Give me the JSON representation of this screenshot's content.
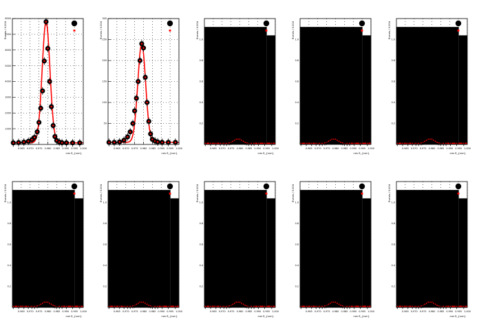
{
  "colors": {
    "data_marker": "#000000",
    "fit": "#ff0000",
    "frame": "#000000",
    "grid": "#000000",
    "fill": "#000000",
    "background": "#ffffff"
  },
  "chart_data": [
    {
      "type": "scatter",
      "title": "",
      "xlabel": "cos θ_{sun}",
      "ylabel": "Events / 0.004",
      "xlim": [
        0.96,
        1.0
      ],
      "ylim": [
        0,
        8000
      ],
      "grid": true,
      "legend_placement": "top-right",
      "filled": false,
      "xticks": [
        0.965,
        0.97,
        0.975,
        0.98,
        0.985,
        0.99,
        0.995,
        1.0
      ],
      "yticks": [
        1000,
        2000,
        3000,
        4000,
        5000,
        6000,
        7000,
        8000
      ],
      "x": [
        0.9605,
        0.9635,
        0.9665,
        0.969,
        0.971,
        0.9725,
        0.974,
        0.975,
        0.976,
        0.977,
        0.978,
        0.979,
        0.98,
        0.981,
        0.982,
        0.983,
        0.984,
        0.985,
        0.9865,
        0.988,
        0.9905,
        0.994,
        0.998
      ],
      "y": [
        100,
        120,
        150,
        200,
        300,
        450,
        800,
        1400,
        2300,
        3400,
        5300,
        7800,
        6100,
        4000,
        2400,
        1200,
        500,
        250,
        150,
        110,
        100,
        100,
        100
      ]
    },
    {
      "type": "scatter",
      "title": "",
      "xlabel": "cos θ_{sun}",
      "ylabel": "Events / 0.004",
      "xlim": [
        0.96,
        1.0
      ],
      "ylim": [
        0,
        300
      ],
      "grid": true,
      "legend_placement": "top-right",
      "filled": false,
      "xticks": [
        0.965,
        0.97,
        0.975,
        0.98,
        0.985,
        0.99,
        0.995,
        1.0
      ],
      "yticks": [
        50,
        100,
        150,
        200,
        250,
        300
      ],
      "x": [
        0.9605,
        0.9635,
        0.9665,
        0.969,
        0.971,
        0.9725,
        0.974,
        0.975,
        0.976,
        0.977,
        0.978,
        0.979,
        0.98,
        0.981,
        0.982,
        0.983,
        0.984,
        0.985,
        0.9865,
        0.988,
        0.9905,
        0.994,
        0.998
      ],
      "y": [
        5,
        5,
        6,
        10,
        18,
        30,
        50,
        80,
        110,
        150,
        200,
        240,
        230,
        160,
        100,
        55,
        25,
        12,
        8,
        6,
        5,
        5,
        5
      ]
    },
    {
      "type": "scatter",
      "title": "",
      "xlabel": "cos θ_{sun}",
      "ylabel": "Events / 0.004",
      "xlim": [
        0.96,
        1.0
      ],
      "ylim": [
        0,
        1.2
      ],
      "grid": true,
      "legend_placement": "top-right",
      "filled": true,
      "xticks": [
        0.965,
        0.97,
        0.975,
        0.98,
        0.985,
        0.99,
        0.995,
        1.0
      ],
      "yticks": [
        0.2,
        0.4,
        0.6,
        0.8,
        1.0
      ],
      "x": [
        0.9605,
        0.9635,
        0.9665,
        0.969,
        0.971,
        0.9725,
        0.974,
        0.975,
        0.976,
        0.977,
        0.978,
        0.979,
        0.98,
        0.981,
        0.982,
        0.983,
        0.984,
        0.985,
        0.9865,
        0.988,
        0.9905,
        0.994,
        0.998
      ],
      "y": [
        0.01,
        0.01,
        0.01,
        0.01,
        0.01,
        0.01,
        0.015,
        0.02,
        0.03,
        0.04,
        0.05,
        0.05,
        0.05,
        0.04,
        0.03,
        0.02,
        0.015,
        0.01,
        0.01,
        0.01,
        0.01,
        0.01,
        0.01
      ]
    },
    {
      "type": "scatter",
      "title": "",
      "xlabel": "cos θ_{sun}",
      "ylabel": "Events / 0.004",
      "xlim": [
        0.96,
        1.0
      ],
      "ylim": [
        0,
        1.2
      ],
      "grid": true,
      "legend_placement": "top-right",
      "filled": true,
      "xticks": [
        0.965,
        0.97,
        0.975,
        0.98,
        0.985,
        0.99,
        0.995,
        1.0
      ],
      "yticks": [
        0.2,
        0.4,
        0.6,
        0.8,
        1.0
      ],
      "x": [
        0.9605,
        0.9635,
        0.9665,
        0.969,
        0.971,
        0.9725,
        0.974,
        0.975,
        0.976,
        0.977,
        0.978,
        0.979,
        0.98,
        0.981,
        0.982,
        0.983,
        0.984,
        0.985,
        0.9865,
        0.988,
        0.9905,
        0.994,
        0.998
      ],
      "y": [
        0.01,
        0.01,
        0.01,
        0.01,
        0.01,
        0.01,
        0.015,
        0.02,
        0.03,
        0.04,
        0.05,
        0.05,
        0.05,
        0.04,
        0.03,
        0.02,
        0.015,
        0.01,
        0.01,
        0.01,
        0.01,
        0.01,
        0.01
      ]
    },
    {
      "type": "scatter",
      "title": "",
      "xlabel": "cos θ_{sun}",
      "ylabel": "Events / 0.004",
      "xlim": [
        0.96,
        1.0
      ],
      "ylim": [
        0,
        1.2
      ],
      "grid": true,
      "legend_placement": "top-right",
      "filled": true,
      "xticks": [
        0.965,
        0.97,
        0.975,
        0.98,
        0.985,
        0.99,
        0.995,
        1.0
      ],
      "yticks": [
        0.2,
        0.4,
        0.6,
        0.8,
        1.0
      ],
      "x": [
        0.9605,
        0.9635,
        0.9665,
        0.969,
        0.971,
        0.9725,
        0.974,
        0.975,
        0.976,
        0.977,
        0.978,
        0.979,
        0.98,
        0.981,
        0.982,
        0.983,
        0.984,
        0.985,
        0.9865,
        0.988,
        0.9905,
        0.994,
        0.998
      ],
      "y": [
        0.01,
        0.01,
        0.01,
        0.01,
        0.01,
        0.01,
        0.015,
        0.02,
        0.03,
        0.04,
        0.05,
        0.05,
        0.05,
        0.04,
        0.03,
        0.02,
        0.015,
        0.01,
        0.01,
        0.01,
        0.01,
        0.01,
        0.01
      ]
    },
    {
      "type": "scatter",
      "title": "",
      "xlabel": "cos θ_{sun}",
      "ylabel": "Events / 0.004",
      "xlim": [
        0.96,
        1.0
      ],
      "ylim": [
        0,
        1.2
      ],
      "grid": true,
      "legend_placement": "top-right",
      "filled": true,
      "xticks": [
        0.965,
        0.97,
        0.975,
        0.98,
        0.985,
        0.99,
        0.995,
        1.0
      ],
      "yticks": [
        0.2,
        0.4,
        0.6,
        0.8,
        1.0
      ],
      "x": [
        0.9605,
        0.9635,
        0.9665,
        0.969,
        0.971,
        0.9725,
        0.974,
        0.975,
        0.976,
        0.977,
        0.978,
        0.979,
        0.98,
        0.981,
        0.982,
        0.983,
        0.984,
        0.985,
        0.9865,
        0.988,
        0.9905,
        0.994,
        0.998
      ],
      "y": [
        0.01,
        0.01,
        0.01,
        0.01,
        0.01,
        0.01,
        0.015,
        0.02,
        0.03,
        0.04,
        0.05,
        0.05,
        0.05,
        0.04,
        0.03,
        0.02,
        0.015,
        0.01,
        0.01,
        0.01,
        0.01,
        0.01,
        0.01
      ]
    },
    {
      "type": "scatter",
      "title": "",
      "xlabel": "cos θ_{sun}",
      "ylabel": "Events / 0.004",
      "xlim": [
        0.96,
        1.0
      ],
      "ylim": [
        0,
        1.2
      ],
      "grid": true,
      "legend_placement": "top-right",
      "filled": true,
      "xticks": [
        0.965,
        0.97,
        0.975,
        0.98,
        0.985,
        0.99,
        0.995,
        1.0
      ],
      "yticks": [
        0.2,
        0.4,
        0.6,
        0.8,
        1.0
      ],
      "x": [
        0.9605,
        0.9635,
        0.9665,
        0.969,
        0.971,
        0.9725,
        0.974,
        0.975,
        0.976,
        0.977,
        0.978,
        0.979,
        0.98,
        0.981,
        0.982,
        0.983,
        0.984,
        0.985,
        0.9865,
        0.988,
        0.9905,
        0.994,
        0.998
      ],
      "y": [
        0.01,
        0.01,
        0.01,
        0.01,
        0.01,
        0.01,
        0.015,
        0.02,
        0.03,
        0.04,
        0.05,
        0.05,
        0.05,
        0.04,
        0.03,
        0.02,
        0.015,
        0.01,
        0.01,
        0.01,
        0.01,
        0.01,
        0.01
      ]
    },
    {
      "type": "scatter",
      "title": "",
      "xlabel": "cos θ_{sun}",
      "ylabel": "Events / 0.004",
      "xlim": [
        0.96,
        1.0
      ],
      "ylim": [
        0,
        1.2
      ],
      "grid": true,
      "legend_placement": "top-right",
      "filled": true,
      "xticks": [
        0.965,
        0.97,
        0.975,
        0.98,
        0.985,
        0.99,
        0.995,
        1.0
      ],
      "yticks": [
        0.2,
        0.4,
        0.6,
        0.8,
        1.0
      ],
      "x": [
        0.9605,
        0.9635,
        0.9665,
        0.969,
        0.971,
        0.9725,
        0.974,
        0.975,
        0.976,
        0.977,
        0.978,
        0.979,
        0.98,
        0.981,
        0.982,
        0.983,
        0.984,
        0.985,
        0.9865,
        0.988,
        0.9905,
        0.994,
        0.998
      ],
      "y": [
        0.01,
        0.01,
        0.01,
        0.01,
        0.01,
        0.01,
        0.015,
        0.02,
        0.03,
        0.04,
        0.05,
        0.05,
        0.05,
        0.04,
        0.03,
        0.02,
        0.015,
        0.01,
        0.01,
        0.01,
        0.01,
        0.01,
        0.01
      ]
    },
    {
      "type": "scatter",
      "title": "",
      "xlabel": "cos θ_{sun}",
      "ylabel": "Events / 0.004",
      "xlim": [
        0.96,
        1.0
      ],
      "ylim": [
        0,
        1.2
      ],
      "grid": true,
      "legend_placement": "top-right",
      "filled": true,
      "xticks": [
        0.965,
        0.97,
        0.975,
        0.98,
        0.985,
        0.99,
        0.995,
        1.0
      ],
      "yticks": [
        0.2,
        0.4,
        0.6,
        0.8,
        1.0
      ],
      "x": [
        0.9605,
        0.9635,
        0.9665,
        0.969,
        0.971,
        0.9725,
        0.974,
        0.975,
        0.976,
        0.977,
        0.978,
        0.979,
        0.98,
        0.981,
        0.982,
        0.983,
        0.984,
        0.985,
        0.9865,
        0.988,
        0.9905,
        0.994,
        0.998
      ],
      "y": [
        0.01,
        0.01,
        0.01,
        0.01,
        0.01,
        0.01,
        0.015,
        0.02,
        0.03,
        0.04,
        0.05,
        0.05,
        0.05,
        0.04,
        0.03,
        0.02,
        0.015,
        0.01,
        0.01,
        0.01,
        0.01,
        0.01,
        0.01
      ]
    },
    {
      "type": "scatter",
      "title": "",
      "xlabel": "cos θ_{sun}",
      "ylabel": "Events / 0.004",
      "xlim": [
        0.96,
        1.0
      ],
      "ylim": [
        0,
        1.2
      ],
      "grid": true,
      "legend_placement": "top-right",
      "filled": true,
      "xticks": [
        0.965,
        0.97,
        0.975,
        0.98,
        0.985,
        0.99,
        0.995,
        1.0
      ],
      "yticks": [
        0.2,
        0.4,
        0.6,
        0.8,
        1.0
      ],
      "x": [
        0.9605,
        0.9635,
        0.9665,
        0.969,
        0.971,
        0.9725,
        0.974,
        0.975,
        0.976,
        0.977,
        0.978,
        0.979,
        0.98,
        0.981,
        0.982,
        0.983,
        0.984,
        0.985,
        0.9865,
        0.988,
        0.9905,
        0.994,
        0.998
      ],
      "y": [
        0.01,
        0.01,
        0.01,
        0.01,
        0.01,
        0.01,
        0.015,
        0.02,
        0.03,
        0.04,
        0.05,
        0.05,
        0.05,
        0.04,
        0.03,
        0.02,
        0.015,
        0.01,
        0.01,
        0.01,
        0.01,
        0.01,
        0.01
      ]
    }
  ]
}
